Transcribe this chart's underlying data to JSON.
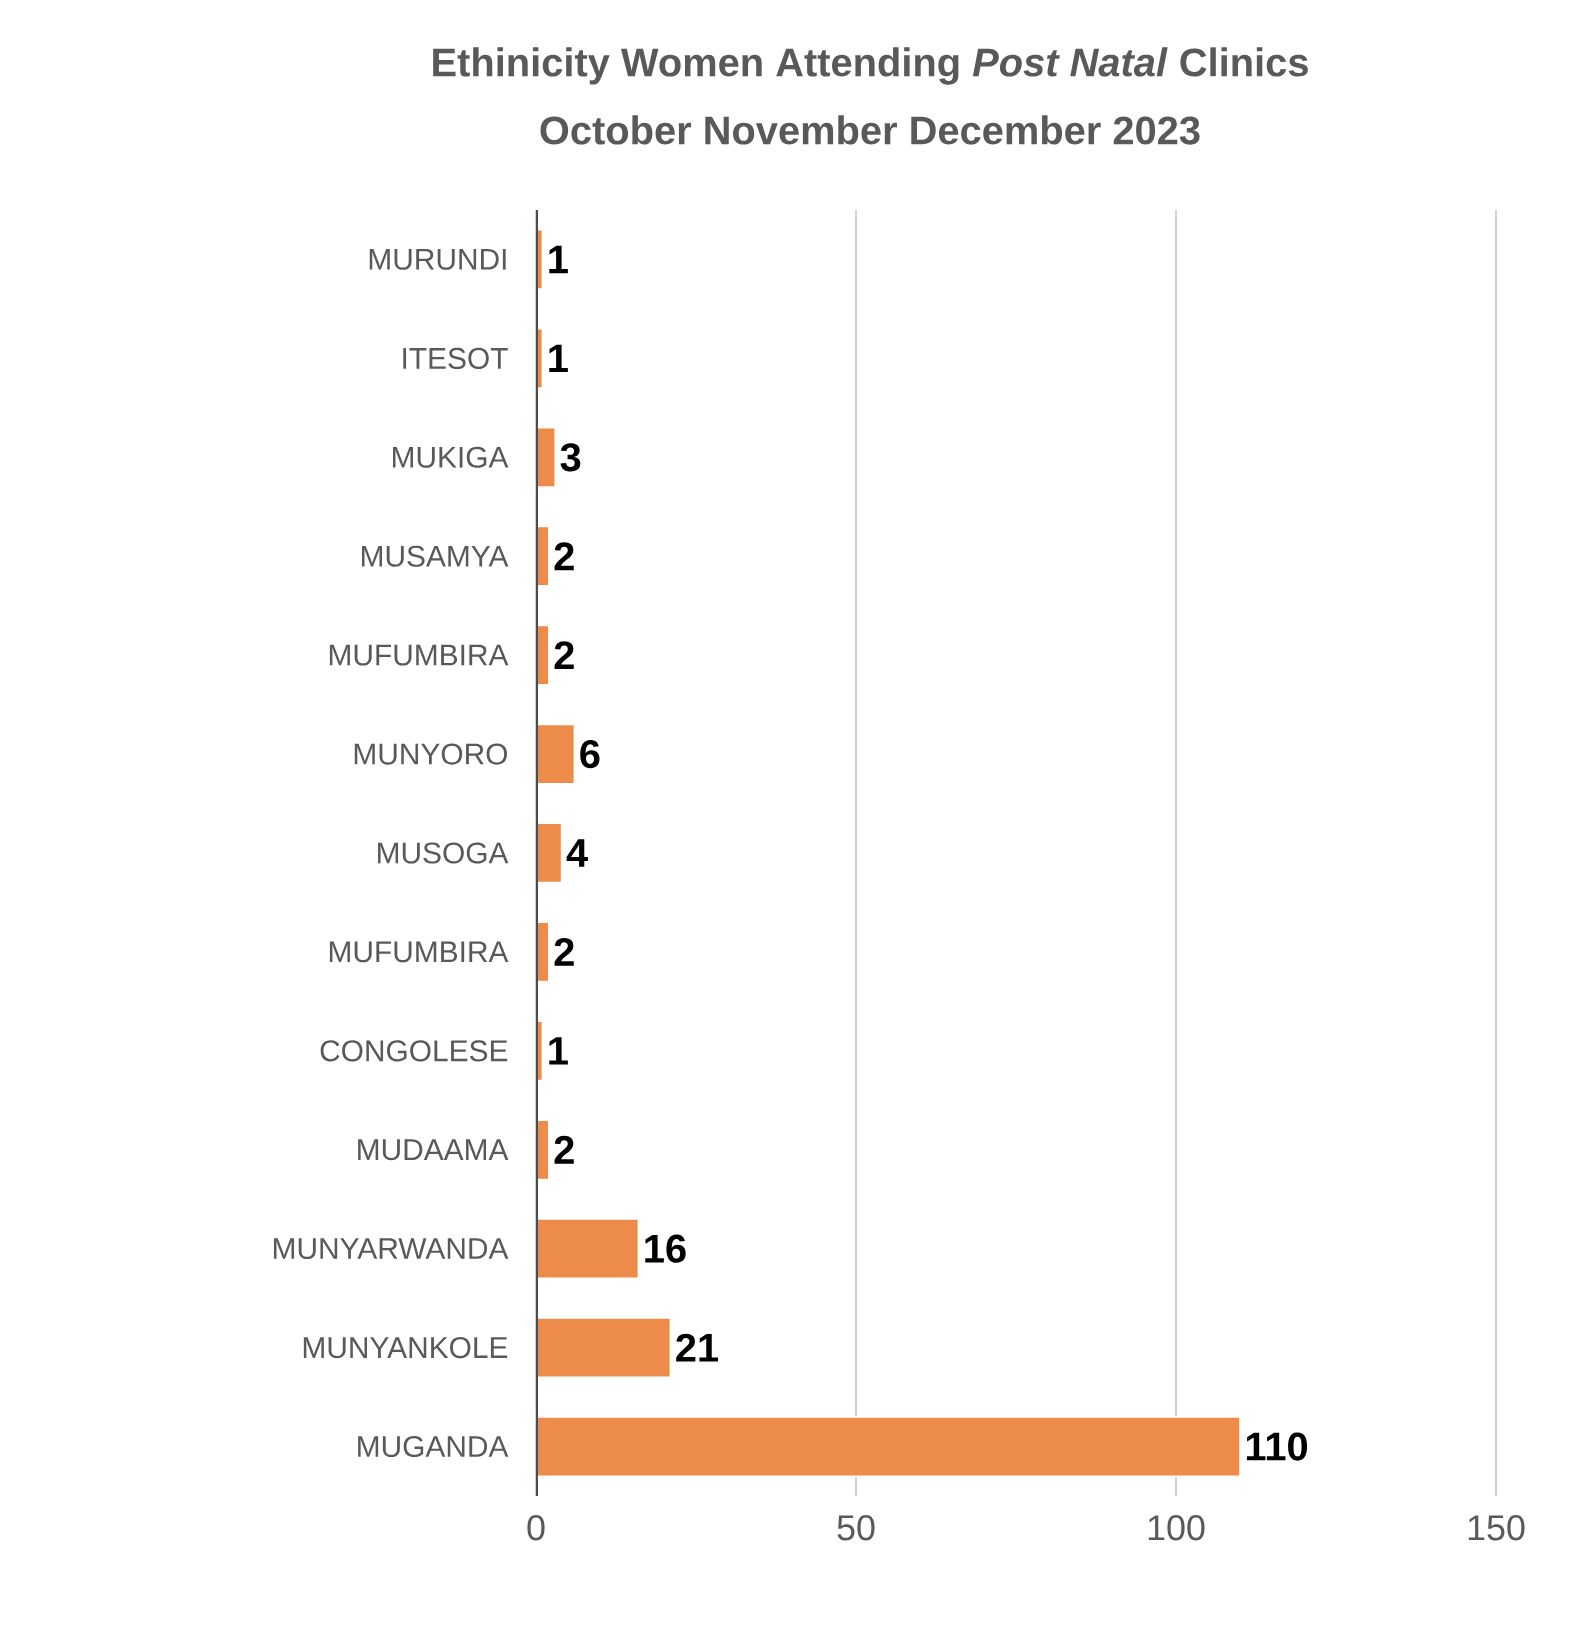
{
  "chart_data": {
    "type": "bar",
    "orientation": "horizontal",
    "title": "Ethinicity Women Attending *Post Natal* Clinics",
    "subtitle": "October November December 2023",
    "categories": [
      "MURUNDI",
      "ITESOT",
      "MUKIGA",
      "MUSAMYA",
      "MUFUMBIRA",
      "MUNYORO",
      "MUSOGA",
      "MUFUMBIRA",
      "CONGOLESE",
      "MUDAAMA",
      "MUNYARWANDA",
      "MUNYANKOLE",
      "MUGANDA"
    ],
    "values": [
      1,
      1,
      3,
      2,
      2,
      6,
      4,
      2,
      1,
      2,
      16,
      21,
      110
    ],
    "color": "#ed8b4a",
    "xlim": [
      0,
      150
    ],
    "xticks": [
      0,
      50,
      100,
      150
    ],
    "grid": "x",
    "data_labels": true
  }
}
